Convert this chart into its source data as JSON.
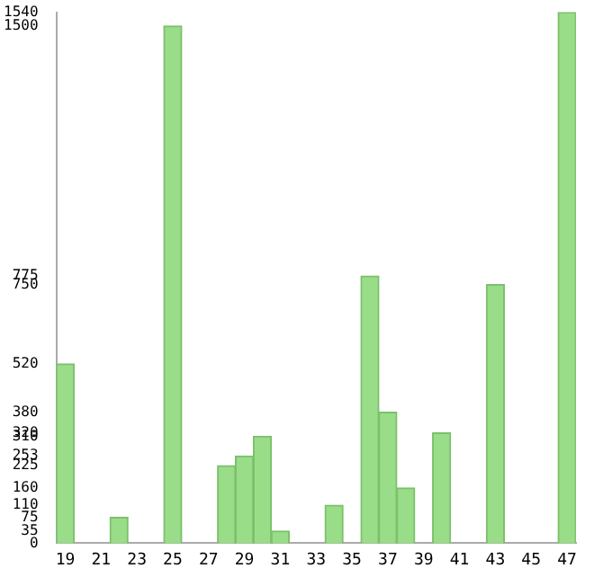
{
  "chart_data": {
    "type": "bar",
    "categories": [
      "19",
      null,
      "21",
      null,
      "23",
      null,
      "25",
      null,
      "27",
      null,
      "29",
      null,
      "31",
      null,
      "33",
      null,
      "35",
      null,
      "37",
      null,
      "39",
      null,
      "41",
      null,
      "43",
      null,
      "45",
      null,
      "47"
    ],
    "values": [
      520,
      0,
      0,
      75,
      0,
      0,
      1500,
      0,
      0,
      225,
      253,
      310,
      35,
      0,
      0,
      110,
      0,
      775,
      380,
      160,
      0,
      320,
      0,
      0,
      750,
      0,
      0,
      0,
      1540
    ],
    "color": "#99dd88",
    "ylim": [
      0,
      1540
    ],
    "yticks": [
      0,
      35,
      75,
      110,
      160,
      225,
      253,
      310,
      320,
      380,
      520,
      750,
      775,
      1500,
      1540
    ],
    "grid": false
  }
}
